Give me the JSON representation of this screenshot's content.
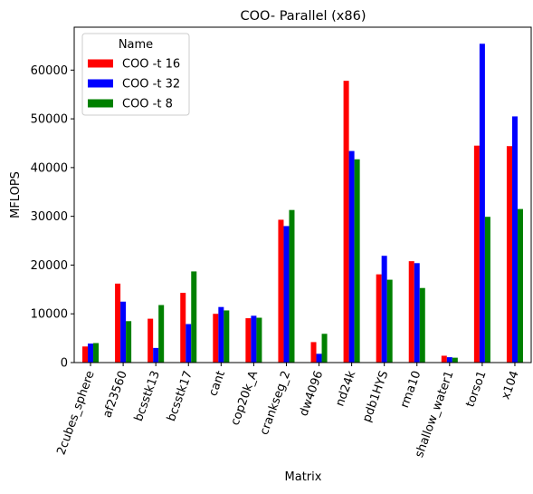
{
  "chart_data": {
    "type": "bar",
    "title": "COO- Parallel (x86)",
    "xlabel": "Matrix",
    "ylabel": "MFLOPS",
    "ylim": [
      0,
      68800
    ],
    "yticks": [
      0,
      10000,
      20000,
      30000,
      40000,
      50000,
      60000
    ],
    "ytick_labels": [
      "0",
      "10000",
      "20000",
      "30000",
      "40000",
      "50000",
      "60000"
    ],
    "categories": [
      "2cubes_sphere",
      "af23560",
      "bcsstk13",
      "bcsstk17",
      "cant",
      "cop20k_A",
      "crankseg_2",
      "dw4096",
      "nd24k",
      "pdb1HYS",
      "rma10",
      "shallow_water1",
      "torso1",
      "x104"
    ],
    "legend": {
      "title": "Name",
      "position": "top-left"
    },
    "grid": false,
    "series": [
      {
        "name": "COO -t 16",
        "color": "#ff0000",
        "values": [
          3300,
          16200,
          9000,
          14300,
          10000,
          9100,
          29300,
          4200,
          57800,
          18100,
          20800,
          1400,
          44500,
          44400
        ]
      },
      {
        "name": "COO -t 32",
        "color": "#0000ff",
        "values": [
          3900,
          12500,
          3000,
          7900,
          11400,
          9600,
          28000,
          1800,
          43400,
          21900,
          20400,
          1100,
          65400,
          50500
        ]
      },
      {
        "name": "COO -t 8",
        "color": "#008000",
        "values": [
          4000,
          8500,
          11800,
          18700,
          10700,
          9200,
          31300,
          5900,
          41700,
          17000,
          15300,
          1000,
          29900,
          31500
        ]
      }
    ]
  }
}
